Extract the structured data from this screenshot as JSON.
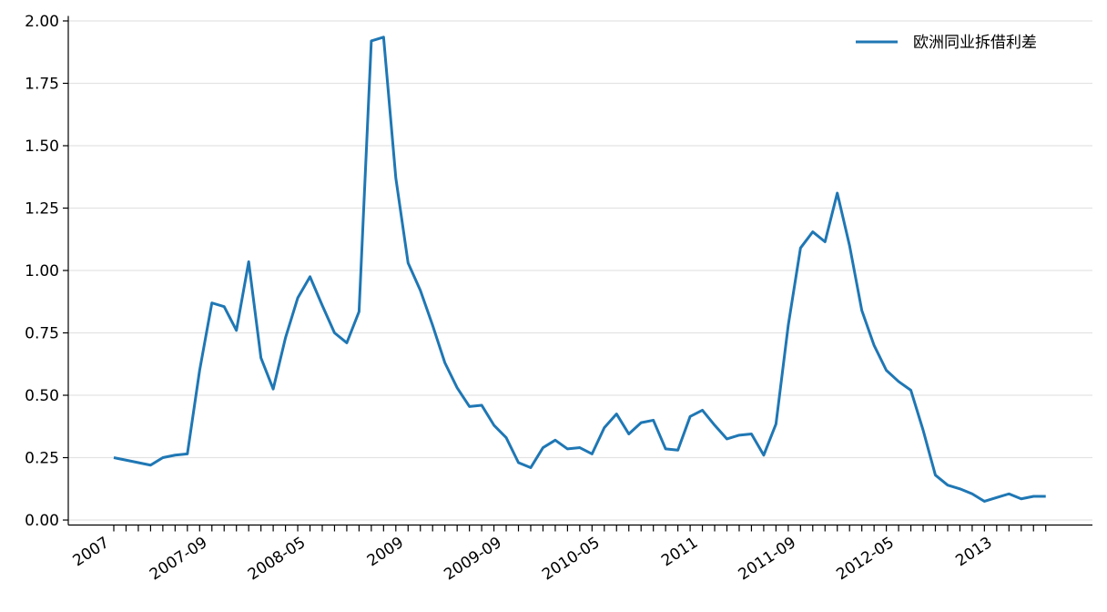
{
  "chart_data": {
    "type": "line",
    "categories": [
      "2007",
      null,
      null,
      null,
      null,
      null,
      null,
      null,
      "2007-09",
      null,
      null,
      null,
      null,
      null,
      null,
      null,
      "2008-05",
      null,
      null,
      null,
      null,
      null,
      null,
      null,
      "2009",
      null,
      null,
      null,
      null,
      null,
      null,
      null,
      "2009-09",
      null,
      null,
      null,
      null,
      null,
      null,
      null,
      "2010-05",
      null,
      null,
      null,
      null,
      null,
      null,
      null,
      "2011",
      null,
      null,
      null,
      null,
      null,
      null,
      null,
      "2011-09",
      null,
      null,
      null,
      null,
      null,
      null,
      null,
      "2012-05",
      null,
      null,
      null,
      null,
      null,
      null,
      null,
      "2013",
      null,
      null,
      null,
      null
    ],
    "series": [
      {
        "name": "欧洲同业拆借利差",
        "color": "#1f77b4",
        "values": [
          0.25,
          0.24,
          0.23,
          0.22,
          0.25,
          0.26,
          0.265,
          0.6,
          0.87,
          0.855,
          0.76,
          1.035,
          0.65,
          0.525,
          0.73,
          0.89,
          0.975,
          0.86,
          0.75,
          0.71,
          0.835,
          1.92,
          1.935,
          1.37,
          1.03,
          0.92,
          0.78,
          0.63,
          0.53,
          0.455,
          0.46,
          0.38,
          0.33,
          0.23,
          0.21,
          0.29,
          0.32,
          0.285,
          0.29,
          0.265,
          0.37,
          0.425,
          0.345,
          0.39,
          0.4,
          0.285,
          0.28,
          0.415,
          0.44,
          0.38,
          0.325,
          0.34,
          0.345,
          0.26,
          0.385,
          0.78,
          1.09,
          1.155,
          1.115,
          1.31,
          1.1,
          0.84,
          0.7,
          0.6,
          0.555,
          0.52,
          0.36,
          0.18,
          0.14,
          0.125,
          0.105,
          0.075,
          0.09,
          0.105,
          0.085,
          0.095,
          0.095
        ]
      }
    ],
    "ylim": [
      -0.02,
      2.02
    ],
    "yticks": [
      {
        "value": 0,
        "label": "0.00"
      },
      {
        "value": 0.25,
        "label": "0.25"
      },
      {
        "value": 0.5,
        "label": "0.50"
      },
      {
        "value": 0.75,
        "label": "0.75"
      },
      {
        "value": 1,
        "label": "1.00"
      },
      {
        "value": 1.25,
        "label": "1.25"
      },
      {
        "value": 1.5,
        "label": "1.50"
      },
      {
        "value": 1.75,
        "label": "1.75"
      },
      {
        "value": 2,
        "label": "2.00"
      }
    ],
    "grid": true,
    "legend": "upper right"
  }
}
